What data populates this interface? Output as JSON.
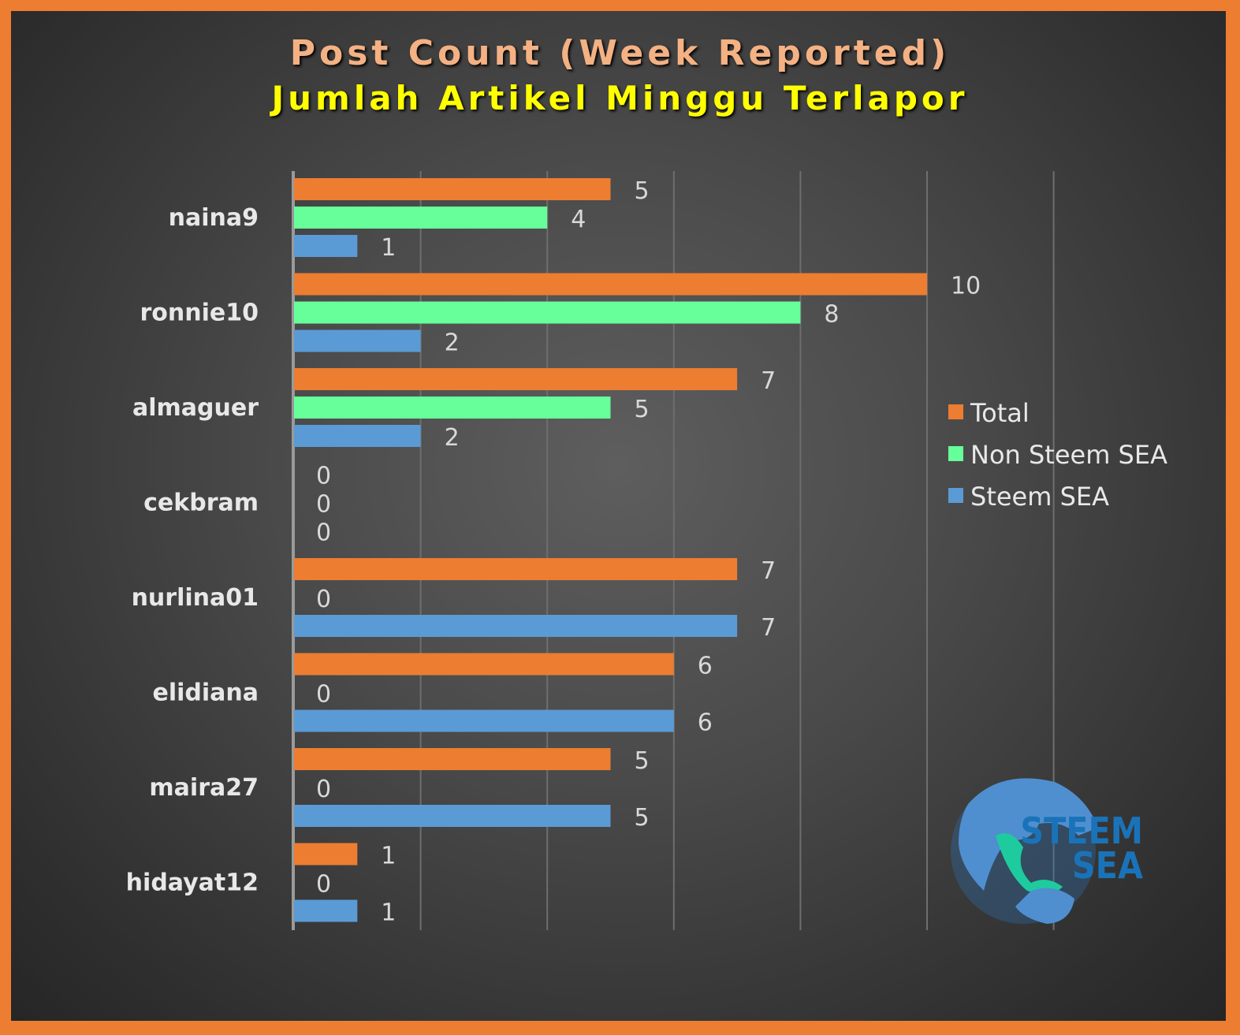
{
  "chart_data": {
    "type": "bar",
    "orientation": "horizontal",
    "title": "Post Count (Week Reported)",
    "subtitle": "Jumlah Artikel Minggu Terlapor",
    "categories": [
      "naina9",
      "ronnie10",
      "almaguer",
      "cekbram",
      "nurlina01",
      "elidiana",
      "maira27",
      "hidayat12"
    ],
    "series": [
      {
        "name": "Total",
        "color": "#ed7d31",
        "values": [
          5,
          10,
          7,
          0,
          7,
          6,
          5,
          1
        ]
      },
      {
        "name": "Non Steem SEA",
        "color": "#66ff99",
        "values": [
          4,
          8,
          5,
          0,
          0,
          0,
          0,
          0
        ]
      },
      {
        "name": "Steem SEA",
        "color": "#5b9bd5",
        "values": [
          1,
          2,
          2,
          0,
          7,
          6,
          5,
          1
        ]
      }
    ],
    "xlim": [
      0,
      12
    ],
    "grid": true,
    "legend_position": "right"
  },
  "logo": {
    "text_line1": "STEEM",
    "text_line2": "SEA",
    "color": "#1a73b8",
    "icon": "globe-icon"
  }
}
